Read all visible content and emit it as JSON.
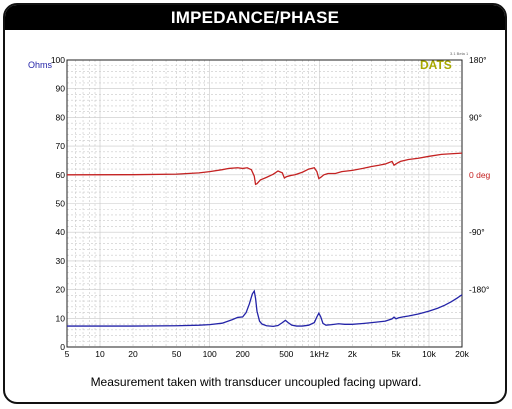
{
  "header": {
    "title": "IMPEDANCE/PHASE"
  },
  "caption": "Measurement taken with transducer uncoupled facing upward.",
  "colors": {
    "impedance": "#2424a8",
    "phase": "#c42222",
    "grid": "#c8c8c8",
    "watermark": "#a8a800"
  },
  "chart_data": {
    "type": "line",
    "title": "IMPEDANCE/PHASE",
    "watermark": "DATS",
    "version_text": "3.1 Beta 1",
    "x_scale": "log",
    "xlim": [
      5,
      20000
    ],
    "x_ticks": [
      {
        "value": 5,
        "label": "5"
      },
      {
        "value": 10,
        "label": "10"
      },
      {
        "value": 20,
        "label": "20"
      },
      {
        "value": 50,
        "label": "50"
      },
      {
        "value": 100,
        "label": "100"
      },
      {
        "value": 200,
        "label": "200"
      },
      {
        "value": 500,
        "label": "500"
      },
      {
        "value": 1000,
        "label": "1kHz"
      },
      {
        "value": 2000,
        "label": "2k"
      },
      {
        "value": 5000,
        "label": "5k"
      },
      {
        "value": 10000,
        "label": "10k"
      },
      {
        "value": 20000,
        "label": "20k"
      }
    ],
    "ylabel_left": "Ohms",
    "ylim_left": [
      0,
      100
    ],
    "y_ticks_left": [
      0,
      10,
      20,
      30,
      40,
      50,
      60,
      70,
      80,
      90,
      100
    ],
    "ylim_right": [
      -270,
      180
    ],
    "y_ticks_right": [
      {
        "value": 180,
        "label": "180°"
      },
      {
        "value": 90,
        "label": "90°"
      },
      {
        "value": 0,
        "label": "0 deg"
      },
      {
        "value": -90,
        "label": "-90°"
      },
      {
        "value": -180,
        "label": "-180°"
      }
    ],
    "grid": true,
    "series": [
      {
        "name": "Ohms",
        "axis": "left",
        "color": "#2424a8",
        "points": [
          [
            5,
            7.3
          ],
          [
            20,
            7.3
          ],
          [
            50,
            7.4
          ],
          [
            80,
            7.6
          ],
          [
            100,
            7.8
          ],
          [
            130,
            8.3
          ],
          [
            160,
            9.5
          ],
          [
            180,
            10.3
          ],
          [
            200,
            10.5
          ],
          [
            215,
            12
          ],
          [
            230,
            15
          ],
          [
            245,
            18.5
          ],
          [
            255,
            19.5
          ],
          [
            262,
            17
          ],
          [
            270,
            12.5
          ],
          [
            285,
            9
          ],
          [
            300,
            8
          ],
          [
            330,
            7.4
          ],
          [
            380,
            7.2
          ],
          [
            420,
            7.5
          ],
          [
            460,
            8.5
          ],
          [
            490,
            9.3
          ],
          [
            520,
            8.5
          ],
          [
            560,
            7.6
          ],
          [
            620,
            7.3
          ],
          [
            700,
            7.3
          ],
          [
            800,
            7.6
          ],
          [
            900,
            8.5
          ],
          [
            950,
            10.5
          ],
          [
            990,
            11.8
          ],
          [
            1030,
            10.5
          ],
          [
            1080,
            8.2
          ],
          [
            1150,
            7.6
          ],
          [
            1300,
            7.8
          ],
          [
            1500,
            8.1
          ],
          [
            1700,
            7.9
          ],
          [
            2000,
            7.9
          ],
          [
            2500,
            8.2
          ],
          [
            3000,
            8.5
          ],
          [
            4000,
            9
          ],
          [
            4600,
            9.8
          ],
          [
            4800,
            10.4
          ],
          [
            5000,
            9.8
          ],
          [
            5300,
            10.2
          ],
          [
            5800,
            10.5
          ],
          [
            6500,
            10.8
          ],
          [
            8000,
            11.5
          ],
          [
            10000,
            12.5
          ],
          [
            12000,
            13.5
          ],
          [
            14000,
            14.6
          ],
          [
            16000,
            15.8
          ],
          [
            18000,
            17
          ],
          [
            20000,
            18.2
          ]
        ]
      },
      {
        "name": "deg",
        "axis": "right",
        "color": "#c42222",
        "points": [
          [
            5,
            0
          ],
          [
            20,
            0.2
          ],
          [
            50,
            1
          ],
          [
            80,
            3
          ],
          [
            100,
            5
          ],
          [
            130,
            8
          ],
          [
            150,
            10
          ],
          [
            180,
            11
          ],
          [
            200,
            10
          ],
          [
            220,
            11
          ],
          [
            240,
            8
          ],
          [
            255,
            -2
          ],
          [
            262,
            -15
          ],
          [
            270,
            -14
          ],
          [
            290,
            -8
          ],
          [
            330,
            -4
          ],
          [
            380,
            1
          ],
          [
            420,
            6
          ],
          [
            460,
            3
          ],
          [
            480,
            -5
          ],
          [
            500,
            -3
          ],
          [
            550,
            -1
          ],
          [
            600,
            0
          ],
          [
            700,
            4
          ],
          [
            800,
            9
          ],
          [
            900,
            11
          ],
          [
            950,
            5
          ],
          [
            990,
            -6
          ],
          [
            1030,
            -4
          ],
          [
            1100,
            0
          ],
          [
            1200,
            2
          ],
          [
            1400,
            2
          ],
          [
            1600,
            5
          ],
          [
            2000,
            7
          ],
          [
            2500,
            10
          ],
          [
            3000,
            13
          ],
          [
            3500,
            15
          ],
          [
            4000,
            17
          ],
          [
            4600,
            21
          ],
          [
            4800,
            15
          ],
          [
            5100,
            18
          ],
          [
            5500,
            21
          ],
          [
            6500,
            24
          ],
          [
            8000,
            26
          ],
          [
            10000,
            29
          ],
          [
            13000,
            32
          ],
          [
            16000,
            33
          ],
          [
            20000,
            34
          ]
        ]
      }
    ]
  }
}
